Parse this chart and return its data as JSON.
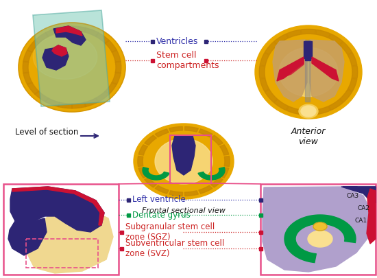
{
  "bg_color": "#ffffff",
  "pink_border": "#e8508a",
  "dark_blue": "#2d2575",
  "red_stem": "#cc1133",
  "gold_brain": "#e8a800",
  "gold_light": "#f5cc50",
  "gold_lighter": "#fae090",
  "green_dentate": "#009944",
  "green_dark": "#007733",
  "light_purple": "#b0a0cc",
  "teal_plane": "#80ccbb",
  "teal_plane_edge": "#50aaa0",
  "yellow_tissue": "#f0d890",
  "dashed_blue": "#3333aa",
  "dashed_red": "#cc2222",
  "dashed_green": "#009944",
  "label_ventricles": "Ventricles",
  "label_stem_cell": "Stem cell\ncompartments",
  "label_anterior": "Anterior\nview",
  "label_level": "Level of section",
  "label_frontal": "Frontal sectional view",
  "label_left_vent": "Left ventricle",
  "label_dentate": "Dentate gyrus",
  "label_sgz": "Subgranular stem cell\nzone (SGZ)",
  "label_svz": "Subventricular stem cell\nzone (SVZ)",
  "label_ca1": "CA1",
  "label_ca2": "CA2",
  "label_ca3": "CA3",
  "gyri_color": "#c88800",
  "brain_outline": "#c88800",
  "beige_inner": "#c8a060",
  "gray_central": "#b0a0a0"
}
